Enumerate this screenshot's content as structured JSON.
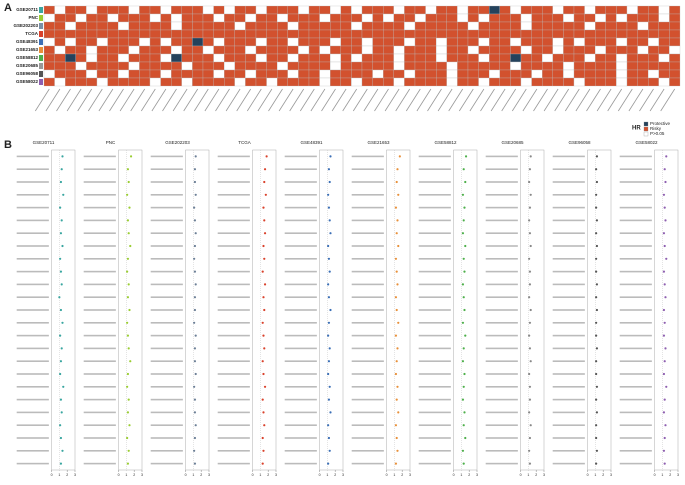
{
  "panels": {
    "a": "A",
    "b": "B"
  },
  "heatmap": {
    "type": "heatmap",
    "rows": [
      "GSE20711",
      "PNC",
      "GSE202203",
      "TCGA",
      "GSE48391",
      "GSE21653",
      "GSE58812",
      "GSE20685",
      "GSE96058",
      "GSE58022"
    ],
    "row_colors": [
      "#3aa6a0",
      "#9acd32",
      "#7a8fa6",
      "#d9412b",
      "#3b6fb6",
      "#e8903a",
      "#4daf4a",
      "#999999",
      "#555555",
      "#8e5fb0"
    ],
    "colors": {
      "1": "#d2512e",
      "0": "#ffffff",
      "-1": "#24425c"
    },
    "values": [
      [
        1,
        0,
        1,
        1,
        0,
        1,
        1,
        1,
        0,
        1,
        1,
        0,
        1,
        1,
        1,
        0,
        1,
        0,
        1,
        1,
        0,
        1,
        1,
        1,
        0,
        1,
        1,
        0,
        1,
        0,
        1,
        1,
        1,
        0,
        1,
        1,
        0,
        1,
        1,
        0,
        1,
        1,
        -1,
        1,
        0,
        1,
        1,
        1,
        0,
        1,
        1,
        0,
        1,
        1,
        1,
        0,
        1,
        1,
        0,
        1
      ],
      [
        0,
        1,
        1,
        0,
        1,
        1,
        0,
        1,
        1,
        1,
        0,
        1,
        0,
        1,
        1,
        1,
        0,
        1,
        1,
        0,
        1,
        1,
        0,
        1,
        1,
        1,
        0,
        1,
        1,
        1,
        0,
        1,
        0,
        1,
        1,
        0,
        1,
        1,
        1,
        0,
        1,
        0,
        1,
        1,
        1,
        0,
        1,
        1,
        1,
        0,
        1,
        1,
        0,
        1,
        0,
        1,
        1,
        1,
        0,
        1
      ],
      [
        1,
        1,
        0,
        1,
        1,
        1,
        1,
        0,
        1,
        1,
        1,
        1,
        0,
        1,
        1,
        1,
        1,
        1,
        0,
        1,
        1,
        1,
        1,
        0,
        1,
        1,
        1,
        1,
        1,
        0,
        1,
        1,
        1,
        1,
        0,
        1,
        1,
        1,
        1,
        1,
        0,
        1,
        1,
        1,
        1,
        0,
        1,
        1,
        1,
        1,
        1,
        0,
        1,
        1,
        1,
        1,
        0,
        1,
        1,
        1
      ],
      [
        1,
        1,
        1,
        1,
        1,
        1,
        1,
        1,
        1,
        1,
        1,
        1,
        1,
        1,
        1,
        1,
        1,
        1,
        1,
        1,
        1,
        1,
        1,
        1,
        1,
        1,
        1,
        1,
        1,
        1,
        1,
        1,
        1,
        1,
        1,
        1,
        1,
        1,
        1,
        1,
        1,
        1,
        1,
        1,
        1,
        1,
        1,
        1,
        1,
        1,
        1,
        1,
        1,
        1,
        1,
        1,
        1,
        1,
        1,
        1
      ],
      [
        0,
        1,
        0,
        1,
        1,
        0,
        1,
        1,
        1,
        0,
        1,
        0,
        1,
        1,
        -1,
        1,
        0,
        1,
        1,
        1,
        0,
        1,
        1,
        0,
        1,
        1,
        1,
        0,
        1,
        1,
        0,
        1,
        1,
        1,
        0,
        1,
        1,
        0,
        1,
        1,
        1,
        0,
        1,
        1,
        0,
        1,
        1,
        1,
        0,
        1,
        0,
        1,
        1,
        1,
        0,
        1,
        1,
        0,
        1,
        1
      ],
      [
        1,
        0,
        1,
        1,
        0,
        1,
        1,
        1,
        0,
        1,
        1,
        1,
        0,
        1,
        1,
        0,
        1,
        1,
        1,
        0,
        1,
        1,
        1,
        1,
        0,
        1,
        0,
        1,
        1,
        1,
        0,
        1,
        1,
        0,
        1,
        1,
        1,
        0,
        1,
        1,
        0,
        1,
        1,
        1,
        1,
        0,
        1,
        1,
        0,
        1,
        1,
        1,
        0,
        1,
        1,
        1,
        0,
        1,
        1,
        0
      ],
      [
        1,
        1,
        -1,
        1,
        0,
        1,
        1,
        0,
        1,
        1,
        1,
        0,
        -1,
        1,
        1,
        1,
        0,
        1,
        1,
        1,
        0,
        1,
        1,
        0,
        1,
        1,
        1,
        0,
        1,
        0,
        1,
        1,
        1,
        0,
        1,
        1,
        1,
        0,
        1,
        1,
        1,
        0,
        1,
        1,
        -1,
        1,
        1,
        0,
        1,
        1,
        1,
        0,
        1,
        1,
        0,
        1,
        1,
        1,
        0,
        1
      ],
      [
        1,
        1,
        1,
        0,
        1,
        1,
        1,
        1,
        0,
        1,
        1,
        1,
        1,
        0,
        1,
        1,
        1,
        0,
        1,
        1,
        1,
        1,
        0,
        1,
        1,
        1,
        1,
        0,
        1,
        1,
        1,
        1,
        1,
        0,
        1,
        1,
        1,
        1,
        0,
        1,
        1,
        1,
        1,
        1,
        0,
        1,
        1,
        1,
        1,
        0,
        1,
        1,
        1,
        1,
        0,
        1,
        1,
        1,
        1,
        1
      ],
      [
        0,
        1,
        1,
        1,
        0,
        1,
        1,
        0,
        1,
        1,
        1,
        0,
        1,
        1,
        1,
        1,
        0,
        1,
        1,
        0,
        1,
        1,
        1,
        0,
        1,
        1,
        0,
        1,
        1,
        1,
        1,
        0,
        1,
        1,
        0,
        1,
        1,
        1,
        0,
        1,
        1,
        1,
        0,
        1,
        1,
        1,
        0,
        1,
        1,
        0,
        1,
        1,
        1,
        1,
        0,
        1,
        1,
        0,
        1,
        1
      ],
      [
        1,
        0,
        1,
        1,
        1,
        0,
        1,
        1,
        1,
        1,
        0,
        1,
        1,
        0,
        1,
        1,
        1,
        1,
        0,
        1,
        1,
        0,
        1,
        1,
        1,
        1,
        0,
        1,
        1,
        0,
        1,
        1,
        1,
        0,
        1,
        1,
        1,
        1,
        0,
        1,
        1,
        0,
        1,
        1,
        1,
        0,
        1,
        1,
        1,
        1,
        0,
        1,
        1,
        1,
        0,
        1,
        1,
        1,
        0,
        1
      ]
    ]
  },
  "legend": {
    "title": "HR",
    "items": [
      "Protective",
      "Risky",
      "P>0.05"
    ]
  },
  "forest": {
    "type": "forest",
    "xlim": [
      0,
      3
    ],
    "xticks": [
      0,
      1,
      2,
      3
    ],
    "series": [
      {
        "name": "GSE20711",
        "color": "#3aa6a0",
        "values": [
          1.4,
          1.3,
          1.2,
          1.5,
          1.1,
          1.3,
          1.2,
          1.4,
          1.1,
          1.2,
          1.3,
          1.0,
          1.2,
          1.4,
          1.1,
          1.3,
          1.2,
          1.1,
          1.5,
          1.2,
          1.3,
          1.1,
          1.2,
          1.4,
          1.2
        ]
      },
      {
        "name": "PNC",
        "color": "#9acd32",
        "values": [
          1.6,
          1.2,
          1.3,
          1.1,
          1.4,
          1.2,
          1.3,
          1.5,
          1.2,
          1.1,
          1.3,
          1.2,
          1.4,
          1.1,
          1.2,
          1.3,
          1.5,
          1.2,
          1.1,
          1.3,
          1.2,
          1.4,
          1.1,
          1.3,
          1.2
        ]
      },
      {
        "name": "GSE202203",
        "color": "#6c7f96",
        "values": [
          1.3,
          1.2,
          1.2,
          1.3,
          1.1,
          1.2,
          1.3,
          1.2,
          1.1,
          1.2,
          1.3,
          1.2,
          1.2,
          1.1,
          1.3,
          1.2,
          1.2,
          1.3,
          1.1,
          1.2,
          1.2,
          1.3,
          1.2,
          1.1,
          1.2
        ]
      },
      {
        "name": "TCGA",
        "color": "#d9412b",
        "values": [
          1.8,
          1.6,
          1.5,
          1.7,
          1.4,
          1.5,
          1.6,
          1.4,
          1.5,
          1.3,
          1.6,
          1.4,
          1.5,
          1.3,
          1.4,
          1.5,
          1.3,
          1.4,
          1.6,
          1.3,
          1.4,
          1.5,
          1.3,
          1.4,
          1.3
        ]
      },
      {
        "name": "GSE48391",
        "color": "#3b6fb6",
        "values": [
          1.4,
          1.2,
          1.3,
          1.1,
          1.2,
          1.3,
          1.4,
          1.1,
          1.2,
          1.3,
          1.1,
          1.2,
          1.4,
          1.2,
          1.1,
          1.3,
          1.2,
          1.1,
          1.3,
          1.2,
          1.4,
          1.1,
          1.2,
          1.3,
          1.1
        ]
      },
      {
        "name": "GSE21653",
        "color": "#e8903a",
        "values": [
          1.7,
          1.4,
          1.3,
          1.5,
          1.2,
          1.4,
          1.3,
          1.5,
          1.2,
          1.3,
          1.4,
          1.2,
          1.3,
          1.5,
          1.2,
          1.4,
          1.3,
          1.2,
          1.4,
          1.3,
          1.5,
          1.2,
          1.3,
          1.4,
          1.2
        ]
      },
      {
        "name": "GSE58812",
        "color": "#4daf4a",
        "values": [
          1.6,
          1.3,
          1.5,
          1.2,
          1.4,
          1.3,
          1.2,
          1.5,
          1.3,
          1.4,
          1.2,
          1.3,
          1.4,
          1.2,
          1.5,
          1.3,
          1.2,
          1.4,
          1.3,
          1.2,
          1.4,
          1.3,
          1.5,
          1.2,
          1.3
        ]
      },
      {
        "name": "GSE20685",
        "color": "#888888",
        "values": [
          1.3,
          1.2,
          1.1,
          1.3,
          1.2,
          1.1,
          1.2,
          1.3,
          1.1,
          1.2,
          1.2,
          1.1,
          1.3,
          1.2,
          1.1,
          1.2,
          1.3,
          1.1,
          1.2,
          1.2,
          1.1,
          1.3,
          1.2,
          1.1,
          1.2
        ]
      },
      {
        "name": "GSE96058",
        "color": "#555555",
        "values": [
          1.2,
          1.1,
          1.2,
          1.1,
          1.1,
          1.2,
          1.1,
          1.2,
          1.1,
          1.1,
          1.2,
          1.1,
          1.2,
          1.1,
          1.1,
          1.2,
          1.1,
          1.1,
          1.2,
          1.1,
          1.2,
          1.1,
          1.1,
          1.2,
          1.1
        ]
      },
      {
        "name": "GSE58022",
        "color": "#8e5fb0",
        "values": [
          1.5,
          1.3,
          1.4,
          1.2,
          1.3,
          1.4,
          1.2,
          1.3,
          1.5,
          1.2,
          1.3,
          1.4,
          1.2,
          1.3,
          1.2,
          1.4,
          1.3,
          1.2,
          1.5,
          1.3,
          1.2,
          1.4,
          1.3,
          1.2,
          1.3
        ]
      }
    ]
  }
}
